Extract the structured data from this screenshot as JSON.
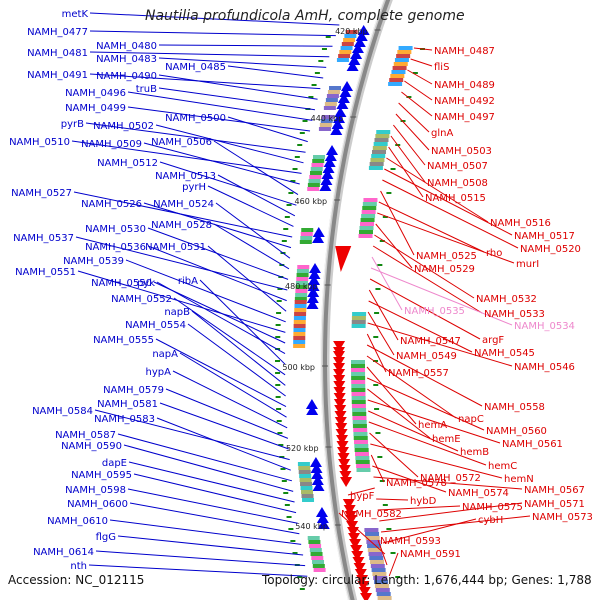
{
  "title": "Nautilia profundicola AmH, complete genome",
  "footer": {
    "accession": "Accession: NC_012115",
    "topology": "Topology: circular; Length: 1,676,444 bp; Genes: 1,788"
  },
  "colors": {
    "left_label": "#0000cc",
    "right_label": "#dd0000",
    "pink_label": "#ee88cc",
    "backbone": "#888888",
    "tick": "#118811",
    "forward_strand": "#0000ee",
    "reverse_strand": "#ee0000"
  },
  "ticks": [
    {
      "label": "420 kbp"
    },
    {
      "label": "440 kbp"
    },
    {
      "label": "460 kbp"
    },
    {
      "label": "480 kbp"
    },
    {
      "label": "500 kbp"
    },
    {
      "label": "520 kbp"
    },
    {
      "label": "540 kbp"
    }
  ],
  "left_genes": [
    "metK",
    "NAMH_0477",
    "NAMH_0480",
    "NAMH_0481",
    "NAMH_0483",
    "NAMH_0485",
    "NAMH_0491",
    "NAMH_0490",
    "truB",
    "NAMH_0496",
    "NAMH_0499",
    "NAMH_0500",
    "pyrB",
    "NAMH_0502",
    "NAMH_0510",
    "NAMH_0509",
    "NAMH_0506",
    "NAMH_0512",
    "NAMH_0513",
    "pyrH",
    "NAMH_0527",
    "NAMH_0526",
    "NAMH_0524",
    "NAMH_0528",
    "NAMH_0530",
    "NAMH_0537",
    "NAMH_0536",
    "NAMH_0531",
    "NAMH_0539",
    "NAMH_0551",
    "NAMH_0550",
    "pyk",
    "ribA",
    "NAMH_0552",
    "napB",
    "NAMH_0554",
    "NAMH_0555",
    "napA",
    "hypA",
    "NAMH_0579",
    "NAMH_0581",
    "NAMH_0584",
    "NAMH_0583",
    "NAMH_0587",
    "NAMH_0590",
    "dapE",
    "NAMH_0595",
    "NAMH_0598",
    "NAMH_0600",
    "NAMH_0610",
    "flgG",
    "NAMH_0614",
    "nth"
  ],
  "right_genes": [
    "NAMH_0487",
    "fliS",
    "NAMH_0489",
    "NAMH_0492",
    "NAMH_0497",
    "glnA",
    "NAMH_0503",
    "NAMH_0507",
    "NAMH_0508",
    "NAMH_0515",
    "NAMH_0516",
    "NAMH_0517",
    "NAMH_0520",
    "NAMH_0525",
    "rho",
    "murI",
    "NAMH_0529",
    "NAMH_0532",
    "NAMH_0533",
    "NAMH_0535",
    "NAMH_0534",
    "argF",
    "NAMH_0547",
    "NAMH_0545",
    "NAMH_0549",
    "NAMH_0546",
    "NAMH_0557",
    "NAMH_0558",
    "napC",
    "hemA",
    "NAMH_0560",
    "hemE",
    "NAMH_0561",
    "hemB",
    "hemC",
    "NAMH_0572",
    "hemN",
    "NAMH_0578",
    "NAMH_0574",
    "NAMH_0567",
    "hypF",
    "hybD",
    "NAMH_0575",
    "NAMH_0571",
    "NAMH_0573",
    "cybH",
    "NAMH_0582",
    "NAMH_0593",
    "NAMH_0591"
  ],
  "pink_genes": [
    "NAMH_0535",
    "NAMH_0534"
  ]
}
